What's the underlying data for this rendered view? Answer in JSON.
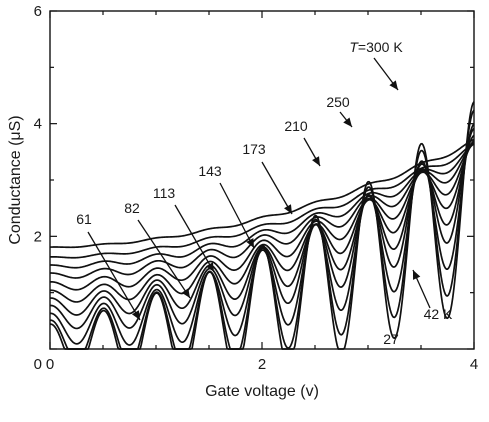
{
  "chart_data": {
    "type": "line",
    "title": "",
    "xlabel": "Gate voltage (v)",
    "ylabel": "Conductance (μS)",
    "xlim": [
      0,
      4
    ],
    "ylim": [
      0,
      6
    ],
    "xticks": [
      "0",
      "2",
      "4"
    ],
    "yticks": [
      "2",
      "4",
      "6"
    ],
    "grid": false,
    "legend": "none",
    "line_color": "#111111",
    "series": [
      {
        "temperature_K": 27,
        "label": "27",
        "base": 0.05,
        "slope": 0.05,
        "curv": 0.145,
        "amp": 0.65
      },
      {
        "temperature_K": 42,
        "label": "42 K",
        "base": 0.18,
        "slope": 0.05,
        "curv": 0.145,
        "amp": 0.55
      },
      {
        "temperature_K": 61,
        "label": "61",
        "base": 0.38,
        "slope": 0.05,
        "curv": 0.14,
        "amp": 0.42
      },
      {
        "temperature_K": 82,
        "label": "82",
        "base": 0.58,
        "slope": 0.05,
        "curv": 0.14,
        "amp": 0.32
      },
      {
        "temperature_K": 113,
        "label": "113",
        "base": 0.76,
        "slope": 0.05,
        "curv": 0.135,
        "amp": 0.24
      },
      {
        "temperature_K": 143,
        "label": "143",
        "base": 0.94,
        "slope": 0.05,
        "curv": 0.13,
        "amp": 0.17
      },
      {
        "temperature_K": 173,
        "label": "173",
        "base": 1.12,
        "slope": 0.05,
        "curv": 0.125,
        "amp": 0.12
      },
      {
        "temperature_K": 210,
        "label": "210",
        "base": 1.3,
        "slope": 0.05,
        "curv": 0.12,
        "amp": 0.08
      },
      {
        "temperature_K": 250,
        "label": "250",
        "base": 1.46,
        "slope": 0.05,
        "curv": 0.115,
        "amp": 0.05
      },
      {
        "temperature_K": 300,
        "label": "T = 300 K",
        "base": 1.62,
        "slope": 0.05,
        "curv": 0.11,
        "amp": 0.025
      },
      {
        "temperature_K": 300,
        "label": "",
        "base": 1.8,
        "slope": 0.05,
        "curv": 0.105,
        "amp": 0.015
      }
    ],
    "oscillation": {
      "period_v": 0.5,
      "first_peak_v": 0.5
    },
    "annotations": [
      {
        "text": "T = 300 K",
        "points_to_series": 9
      },
      {
        "text": "250",
        "points_to_series": 8
      },
      {
        "text": "210",
        "points_to_series": 7
      },
      {
        "text": "173",
        "points_to_series": 6
      },
      {
        "text": "143",
        "points_to_series": 5
      },
      {
        "text": "113",
        "points_to_series": 4
      },
      {
        "text": "82",
        "points_to_series": 3
      },
      {
        "text": "61",
        "points_to_series": 2
      },
      {
        "text": "42 K",
        "points_to_series": 1
      },
      {
        "text": "27",
        "points_to_series": 0
      }
    ]
  }
}
